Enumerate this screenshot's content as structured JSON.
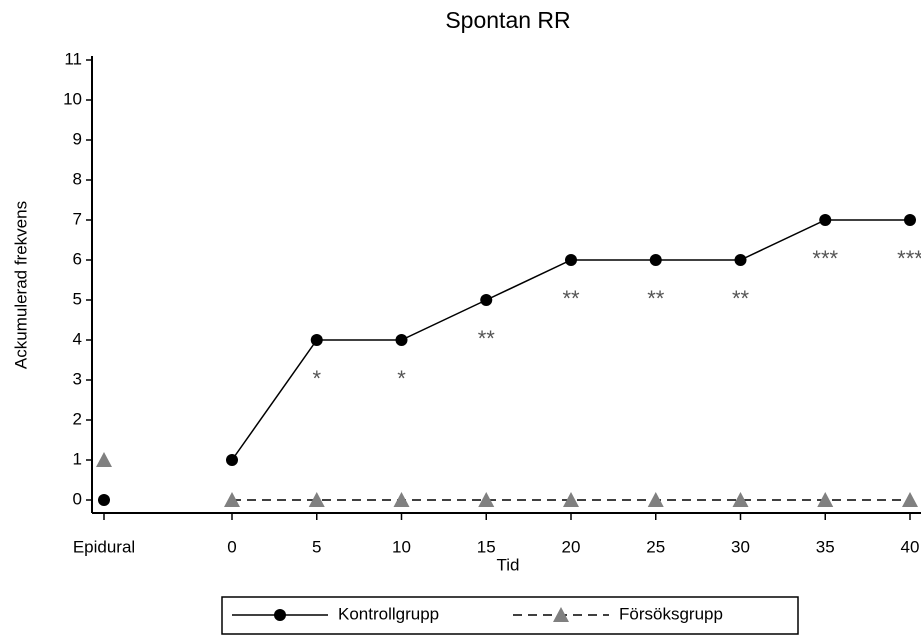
{
  "chart_data": {
    "type": "line",
    "title": "Spontan RR",
    "x_label": "Tid",
    "y_label": "Ackumulerad frekvens",
    "categories": [
      "Epidural",
      "0",
      "5",
      "10",
      "15",
      "20",
      "25",
      "30",
      "35",
      "40"
    ],
    "series": [
      {
        "name": "Kontrollgrupp",
        "color": "#000000",
        "marker": "circle",
        "dash": false,
        "values": [
          0,
          1,
          4,
          4,
          5,
          6,
          6,
          6,
          7,
          7
        ]
      },
      {
        "name": "Försöksgrupp",
        "color": "#808080",
        "marker": "triangle",
        "dash": true,
        "values": [
          1,
          0,
          0,
          0,
          0,
          0,
          0,
          0,
          0,
          0
        ]
      }
    ],
    "annotations": [
      null,
      null,
      "*",
      "*",
      "**",
      "**",
      "**",
      "**",
      "***",
      "***"
    ],
    "ylim": [
      -0.3,
      11.1
    ],
    "yticks": [
      0,
      1,
      2,
      3,
      4,
      5,
      6,
      7,
      8,
      9,
      10,
      11
    ],
    "legend": "bottom"
  }
}
